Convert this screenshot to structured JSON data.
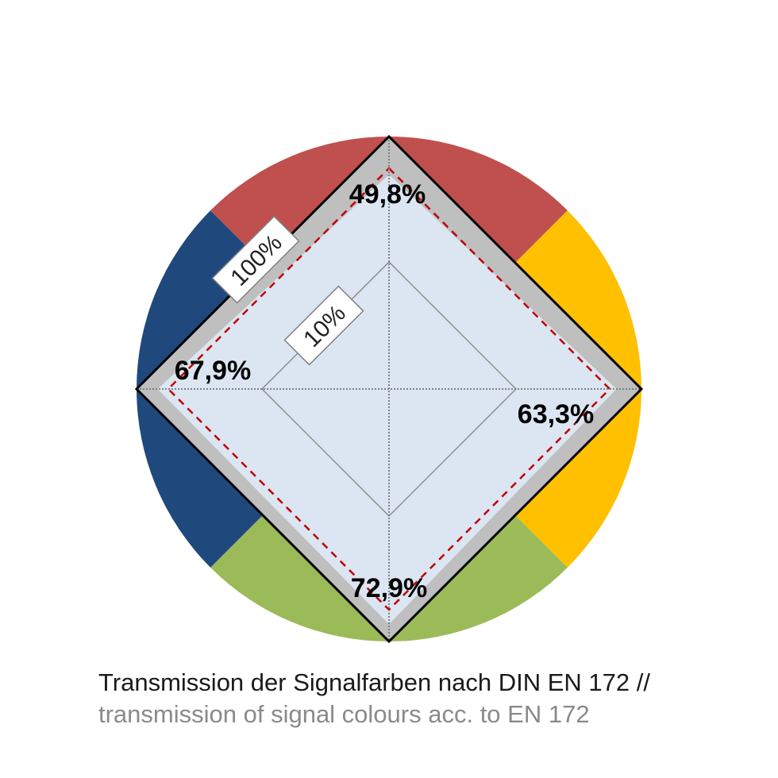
{
  "chart_data": {
    "type": "radar",
    "axes": [
      {
        "color": "red",
        "hex": "#C0504D",
        "value": 49.8,
        "label": "49,8%"
      },
      {
        "color": "yellow",
        "hex": "#FFC000",
        "value": 63.3,
        "label": "63,3%"
      },
      {
        "color": "green",
        "hex": "#9BBB59",
        "value": 72.9,
        "label": "72,9%"
      },
      {
        "color": "blue",
        "hex": "#1F497D",
        "value": 67.9,
        "label": "67,9%"
      }
    ],
    "scale_labels": [
      "100%",
      "10%"
    ],
    "scale_values": [
      100,
      10
    ],
    "scale": "log",
    "reference_limit": "dashed-red",
    "colors": {
      "frame_fill": "#BFBFBF",
      "area_fill": "#DCE6F2",
      "reference_line": "#C00000",
      "outline": "#000000",
      "grid": "#808080"
    }
  },
  "caption": {
    "line_de": "Transmission der Signalfarben nach DIN EN 172 //",
    "line_en": "transmission of signal colours acc. to EN 172"
  }
}
